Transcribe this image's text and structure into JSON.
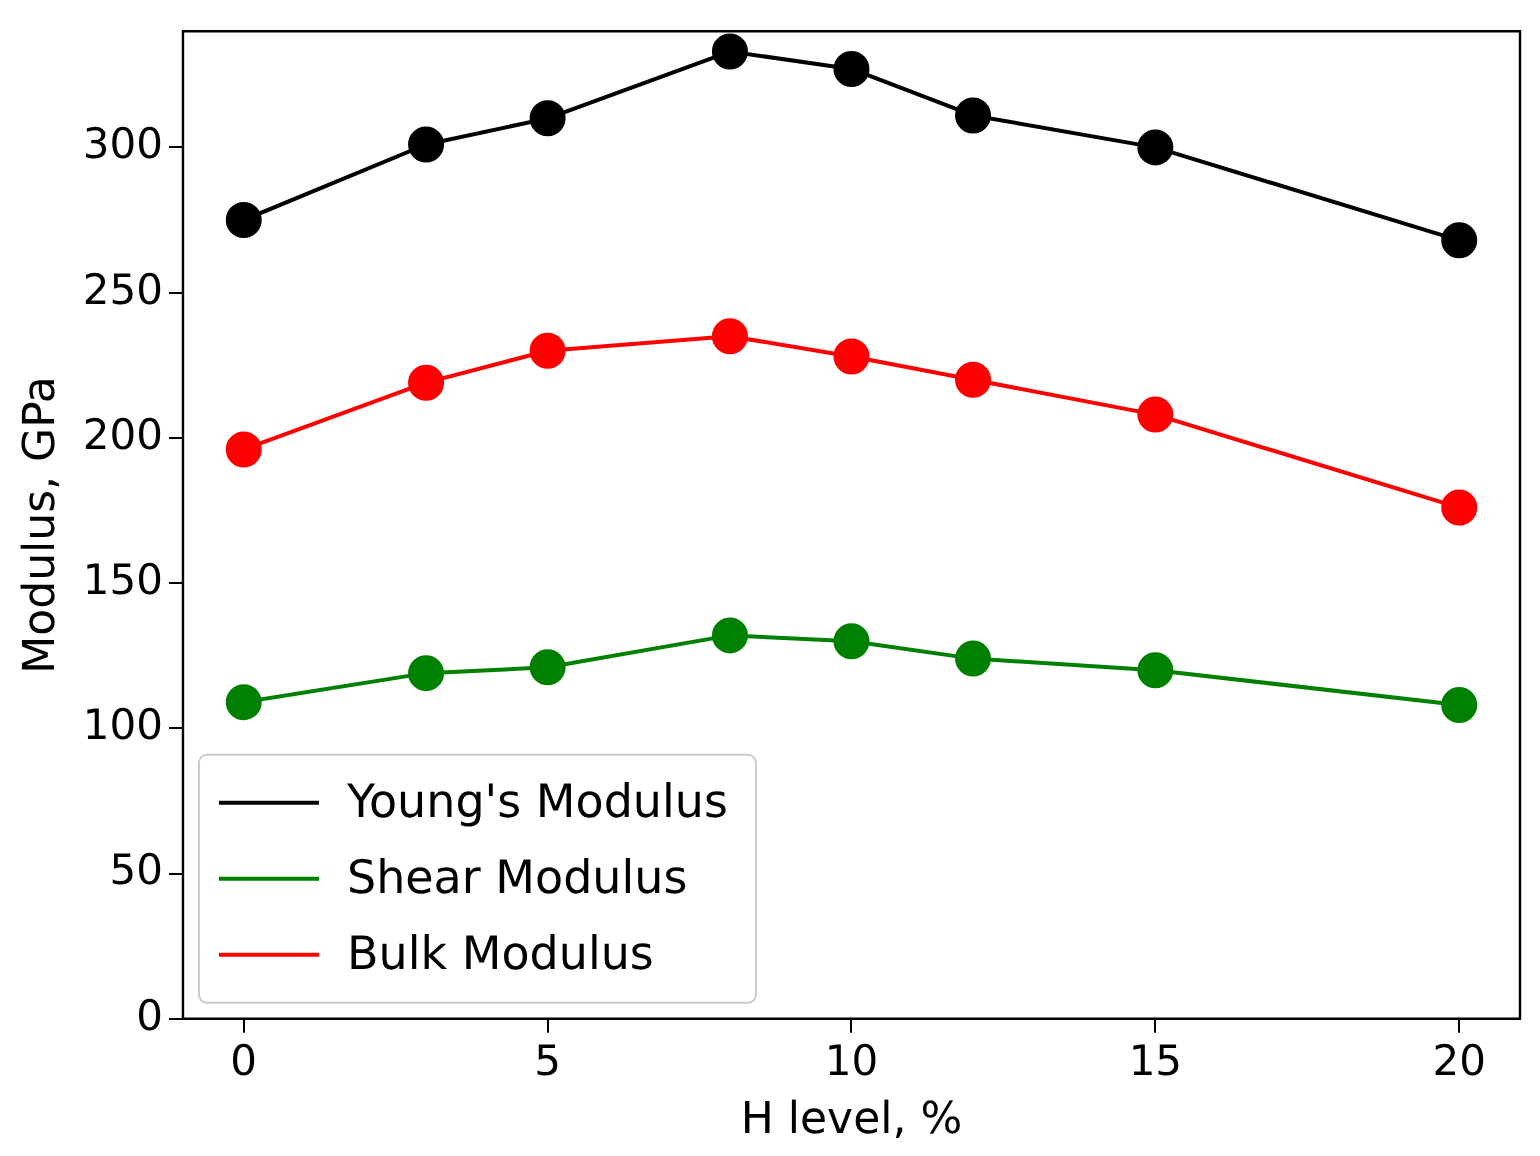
{
  "chart_data": {
    "type": "line",
    "xlabel": "H level, %",
    "ylabel": "Modulus, GPa",
    "x": [
      0,
      3,
      5,
      8,
      10,
      12,
      15,
      20
    ],
    "series": [
      {
        "name": "Young's Modulus",
        "color": "#000000",
        "values": [
          275,
          301,
          310,
          333,
          327,
          311,
          300,
          268
        ]
      },
      {
        "name": "Shear Modulus",
        "color": "#008000",
        "values": [
          109,
          119,
          121,
          132,
          130,
          124,
          120,
          108
        ]
      },
      {
        "name": "Bulk Modulus",
        "color": "#ff0000",
        "values": [
          196,
          219,
          230,
          235,
          228,
          220,
          208,
          176
        ]
      }
    ],
    "xlim": [
      -1,
      21
    ],
    "xticks": [
      0,
      5,
      10,
      15,
      20
    ],
    "ylim": [
      0,
      340
    ],
    "yticks": [
      0,
      50,
      100,
      150,
      200,
      250,
      300
    ],
    "grid": false,
    "legend": "bottom left",
    "marker": "circle",
    "line_style": "solid"
  }
}
